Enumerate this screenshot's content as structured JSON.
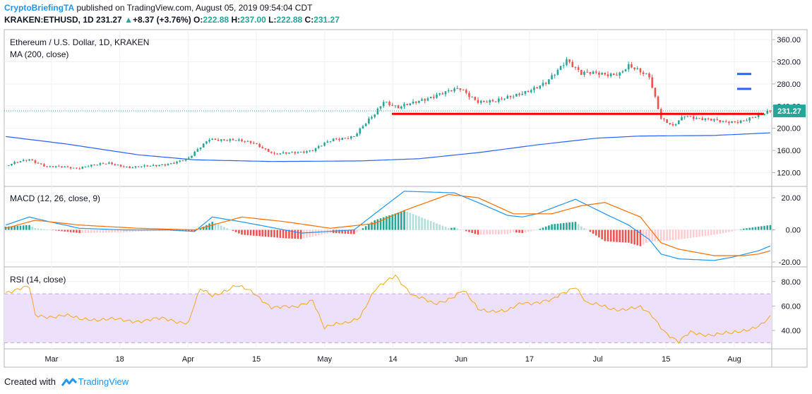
{
  "header": {
    "author": "CryptoBriefingTA",
    "published": "published on TradingView.com, August 05, 2019 09:54:04 CDT",
    "symbol_line": {
      "symbol": "KRAKEN:ETHUSD, 1D",
      "last": "231.27",
      "change": "+8.37 (+3.76%)",
      "o_label": "O:",
      "o": "222.88",
      "h_label": "H:",
      "h": "237.00",
      "l_label": "L:",
      "l": "222.88",
      "c_label": "C:",
      "c": "231.27"
    }
  },
  "footer": {
    "created_with": "Created with",
    "brand": "TradingView"
  },
  "colors": {
    "up": "#26a69a",
    "down": "#ef5350",
    "ma": "#2962ff",
    "macd": "#2196f3",
    "signal": "#ff6d00",
    "rsi": "#f5a623",
    "rsi_band": "#ece0fa",
    "level": "#ff0000",
    "marker": "#2962ff"
  },
  "chart_data": [
    {
      "type": "candlestick",
      "title": "Ethereum / U.S. Dollar, 1D, KRAKEN",
      "indicator": "MA (200, close)",
      "y_ticks": [
        "360.00",
        "320.00",
        "280.00",
        "240.00",
        "200.00",
        "160.00",
        "120.00"
      ],
      "ylim": [
        95,
        378
      ],
      "x_ticks": [
        "Mar",
        "18",
        "Apr",
        "15",
        "May",
        "14",
        "Jun",
        "17",
        "Jul",
        "15",
        "Aug"
      ],
      "last_price_label": "231.27",
      "horizontal_level": 226,
      "markers": [
        298,
        271
      ],
      "candle_anchors": [
        [
          0,
          132
        ],
        [
          8,
          144
        ],
        [
          14,
          131
        ],
        [
          24,
          128
        ],
        [
          28,
          133
        ],
        [
          35,
          136
        ],
        [
          42,
          130
        ],
        [
          49,
          131
        ],
        [
          54,
          135
        ],
        [
          62,
          145
        ],
        [
          69,
          182
        ],
        [
          75,
          178
        ],
        [
          84,
          175
        ],
        [
          91,
          152
        ],
        [
          98,
          157
        ],
        [
          104,
          160
        ],
        [
          111,
          180
        ],
        [
          118,
          186
        ],
        [
          125,
          225
        ],
        [
          128,
          250
        ],
        [
          133,
          238
        ],
        [
          138,
          244
        ],
        [
          146,
          262
        ],
        [
          154,
          270
        ],
        [
          160,
          250
        ],
        [
          166,
          247
        ],
        [
          174,
          264
        ],
        [
          180,
          272
        ],
        [
          183,
          280
        ],
        [
          190,
          326
        ],
        [
          195,
          297
        ],
        [
          201,
          300
        ],
        [
          208,
          298
        ],
        [
          211,
          310
        ],
        [
          218,
          296
        ],
        [
          222,
          218
        ],
        [
          226,
          202
        ],
        [
          230,
          223
        ],
        [
          236,
          218
        ],
        [
          243,
          210
        ],
        [
          249,
          214
        ],
        [
          256,
          223
        ],
        [
          259,
          231
        ]
      ],
      "ma200_anchors": [
        [
          0,
          185
        ],
        [
          20,
          172
        ],
        [
          45,
          152
        ],
        [
          64,
          143
        ],
        [
          90,
          140
        ],
        [
          120,
          141
        ],
        [
          140,
          145
        ],
        [
          160,
          156
        ],
        [
          180,
          170
        ],
        [
          200,
          182
        ],
        [
          215,
          186
        ],
        [
          240,
          187
        ],
        [
          260,
          192
        ]
      ],
      "grid": true
    },
    {
      "type": "histogram+line",
      "title": "MACD (12, 26, close, 9)",
      "y_ticks": [
        "20.00",
        "0.00",
        "-20.00"
      ],
      "ylim": [
        -23,
        27
      ],
      "macd_anchors": [
        [
          0,
          3
        ],
        [
          8,
          8
        ],
        [
          15,
          5
        ],
        [
          25,
          1
        ],
        [
          40,
          0
        ],
        [
          55,
          0
        ],
        [
          64,
          -1
        ],
        [
          70,
          8
        ],
        [
          80,
          5
        ],
        [
          100,
          -2
        ],
        [
          118,
          0
        ],
        [
          125,
          10
        ],
        [
          135,
          24
        ],
        [
          152,
          23
        ],
        [
          160,
          17
        ],
        [
          170,
          9
        ],
        [
          175,
          8
        ],
        [
          180,
          10
        ],
        [
          193,
          19
        ],
        [
          203,
          10
        ],
        [
          211,
          3
        ],
        [
          218,
          -6
        ],
        [
          222,
          -15
        ],
        [
          228,
          -18
        ],
        [
          240,
          -19
        ],
        [
          246,
          -17
        ],
        [
          255,
          -13
        ],
        [
          259,
          -10
        ]
      ],
      "signal_anchors": [
        [
          0,
          1
        ],
        [
          10,
          6
        ],
        [
          25,
          3
        ],
        [
          45,
          1
        ],
        [
          64,
          0
        ],
        [
          80,
          8
        ],
        [
          95,
          5
        ],
        [
          110,
          1
        ],
        [
          125,
          4
        ],
        [
          135,
          12
        ],
        [
          150,
          22
        ],
        [
          160,
          20
        ],
        [
          172,
          10
        ],
        [
          185,
          10
        ],
        [
          195,
          15
        ],
        [
          203,
          17
        ],
        [
          215,
          8
        ],
        [
          222,
          -8
        ],
        [
          228,
          -12
        ],
        [
          240,
          -16
        ],
        [
          250,
          -16
        ],
        [
          255,
          -15
        ],
        [
          259,
          -13
        ]
      ]
    },
    {
      "type": "line",
      "title": "RSI (14, close)",
      "y_ticks": [
        "80.00",
        "60.00",
        "40.00"
      ],
      "ylim": [
        25,
        92
      ],
      "band": [
        30,
        70
      ],
      "rsi_anchors": [
        [
          0,
          72
        ],
        [
          8,
          75
        ],
        [
          10,
          52
        ],
        [
          20,
          52
        ],
        [
          25,
          49
        ],
        [
          28,
          50
        ],
        [
          40,
          48
        ],
        [
          53,
          49
        ],
        [
          62,
          47
        ],
        [
          64,
          62
        ],
        [
          66,
          73
        ],
        [
          70,
          68
        ],
        [
          74,
          73
        ],
        [
          78,
          77
        ],
        [
          84,
          70
        ],
        [
          90,
          60
        ],
        [
          98,
          58
        ],
        [
          104,
          66
        ],
        [
          108,
          42
        ],
        [
          115,
          46
        ],
        [
          120,
          52
        ],
        [
          125,
          72
        ],
        [
          132,
          86
        ],
        [
          138,
          68
        ],
        [
          145,
          62
        ],
        [
          152,
          68
        ],
        [
          155,
          72
        ],
        [
          160,
          58
        ],
        [
          170,
          55
        ],
        [
          175,
          63
        ],
        [
          185,
          64
        ],
        [
          193,
          77
        ],
        [
          197,
          62
        ],
        [
          205,
          58
        ],
        [
          215,
          58
        ],
        [
          219,
          52
        ],
        [
          224,
          38
        ],
        [
          228,
          30
        ],
        [
          232,
          38
        ],
        [
          240,
          37
        ],
        [
          246,
          37
        ],
        [
          252,
          42
        ],
        [
          256,
          45
        ],
        [
          259,
          50
        ]
      ],
      "grid": true
    }
  ]
}
